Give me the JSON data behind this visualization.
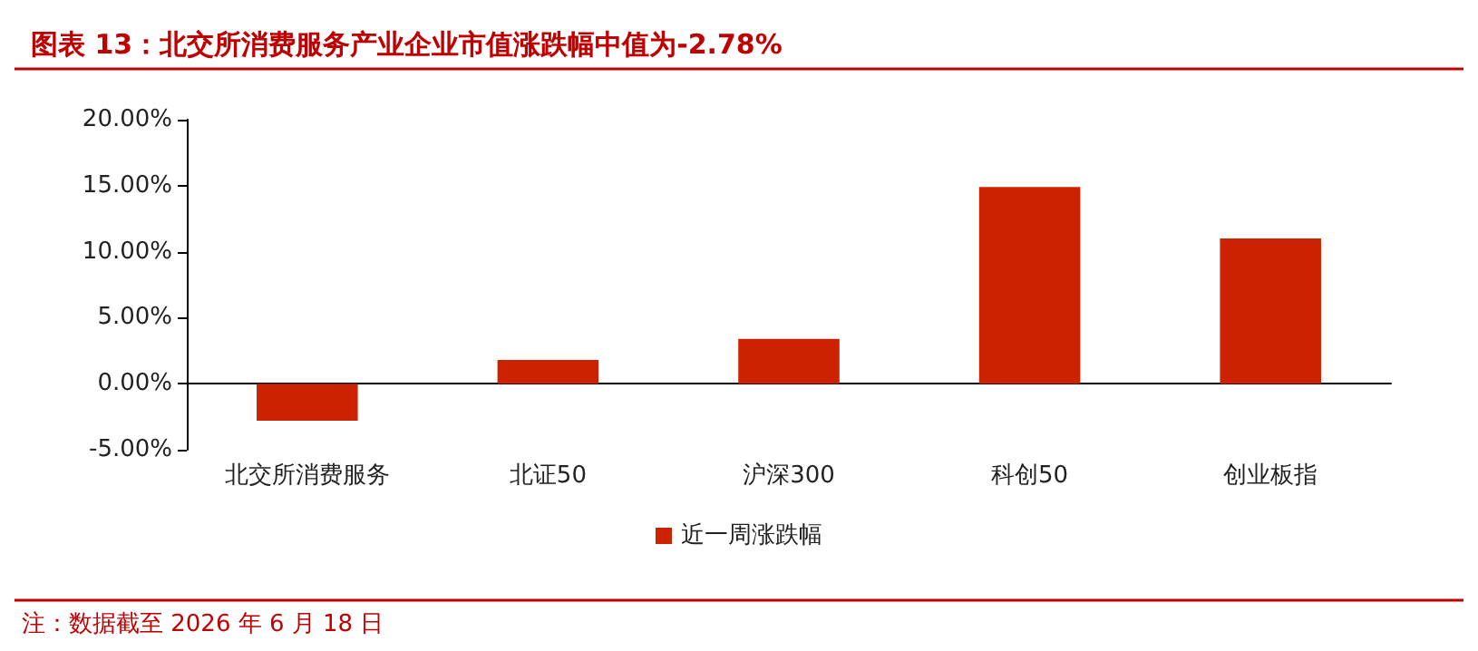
{
  "chart_data": {
    "type": "bar",
    "title": "图表 13：北交所消费服务产业企业市值涨跌幅中值为-2.78%",
    "categories": [
      "北交所消费服务",
      "北证50",
      "沪深300",
      "科创50",
      "创业板指"
    ],
    "series": [
      {
        "name": "近一周涨跌幅",
        "color": "#cc2200",
        "values": [
          -2.8,
          1.8,
          3.4,
          14.9,
          11.0
        ]
      }
    ],
    "ylim": [
      -5,
      20
    ],
    "yticks": [
      {
        "value": -5,
        "label": "-5.00%"
      },
      {
        "value": 0,
        "label": "0.00%"
      },
      {
        "value": 5,
        "label": "5.00%"
      },
      {
        "value": 10,
        "label": "10.00%"
      },
      {
        "value": 15,
        "label": "15.00%"
      },
      {
        "value": 20,
        "label": "20.00%"
      }
    ],
    "legend": "bottom",
    "annotations": [
      "注：数据截至 2026 年 6 月 18 日"
    ]
  }
}
